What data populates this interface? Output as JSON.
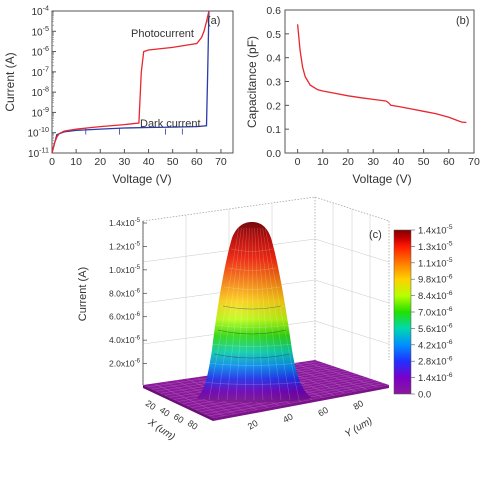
{
  "chart_data": [
    {
      "panel_label": "(a)",
      "type": "line",
      "xlabel": "Voltage (V)",
      "ylabel": "Current (A)",
      "xlim": [
        0,
        75
      ],
      "ylim": [
        1e-11,
        0.0001
      ],
      "yscale": "log",
      "xticks": [
        0,
        10,
        20,
        30,
        40,
        50,
        60,
        70
      ],
      "ytick_labels": [
        "10-4",
        "10-5",
        "10-6",
        "10-7",
        "10-8",
        "10-9",
        "10-10",
        "10-11"
      ],
      "series": [
        {
          "name": "Photocurrent",
          "color": "#e8262f",
          "x": [
            0,
            1,
            2,
            3,
            5,
            10,
            20,
            30,
            36,
            37,
            38,
            40,
            50,
            60,
            62,
            63,
            64,
            65
          ],
          "y": [
            1e-11,
            3e-11,
            6e-11,
            9e-11,
            1.2e-10,
            1.5e-10,
            2e-10,
            2.5e-10,
            3e-10,
            1e-07,
            1e-06,
            1.2e-06,
            1.6e-06,
            2.5e-06,
            5e-06,
            1e-05,
            3e-05,
            0.0001
          ]
        },
        {
          "name": "Dark current",
          "color": "#2b3aa8",
          "x": [
            0,
            2,
            5,
            10,
            20,
            30,
            40,
            50,
            60,
            64,
            64.5,
            65
          ],
          "y": [
            1e-11,
            8e-11,
            1.1e-10,
            1.3e-10,
            1.5e-10,
            1.7e-10,
            1.8e-10,
            1.9e-10,
            2e-10,
            2.2e-10,
            1e-07,
            0.0001
          ]
        }
      ]
    },
    {
      "panel_label": "(b)",
      "type": "line",
      "xlabel": "Voltage (V)",
      "ylabel": "Capacitance (pF)",
      "xlim": [
        -5,
        70
      ],
      "ylim": [
        0,
        0.6
      ],
      "xticks": [
        0,
        10,
        20,
        30,
        40,
        50,
        60,
        70
      ],
      "yticks": [
        0.0,
        0.1,
        0.2,
        0.3,
        0.4,
        0.5,
        0.6
      ],
      "ytick_labels": [
        "0.0",
        "0.1",
        "0.2",
        "0.3",
        "0.4",
        "0.5",
        "0.6"
      ],
      "series": [
        {
          "color": "#e8262f",
          "x": [
            0,
            1,
            2,
            3,
            5,
            8,
            10,
            15,
            20,
            25,
            30,
            35,
            36,
            37,
            40,
            45,
            50,
            55,
            60,
            63,
            65,
            67
          ],
          "y": [
            0.54,
            0.43,
            0.36,
            0.32,
            0.285,
            0.265,
            0.26,
            0.25,
            0.24,
            0.232,
            0.225,
            0.218,
            0.212,
            0.2,
            0.195,
            0.185,
            0.175,
            0.165,
            0.15,
            0.138,
            0.13,
            0.128
          ]
        }
      ]
    },
    {
      "panel_label": "(c)",
      "type": "surface3d",
      "xlabel": "X (um)",
      "ylabel": "Y (um)",
      "zlabel": "Current (A)",
      "x_ticks": [
        "20",
        "40",
        "60",
        "80"
      ],
      "y_ticks": [
        "20",
        "40",
        "60",
        "80"
      ],
      "z_ticks": [
        "2.0x10-6",
        "4.0x10-6",
        "6.0x10-6",
        "8.0x10-6",
        "1.0x10-5",
        "1.2x10-5",
        "1.4x10-5"
      ],
      "peak_value": 1.4e-05,
      "colorbar": {
        "labels": [
          "1.4x10-5",
          "1.3x10-5",
          "1.1x10-5",
          "9.8x10-6",
          "8.4x10-6",
          "7.0x10-6",
          "5.6x10-6",
          "4.2x10-6",
          "2.8x10-6",
          "1.4x10-6",
          "0.0"
        ],
        "colors": [
          "#7f0000",
          "#c40000",
          "#ff1a00",
          "#ff7a00",
          "#ffd000",
          "#b8ff00",
          "#22e000",
          "#00d8b0",
          "#0090ff",
          "#2030ff",
          "#7a00c8",
          "#8a1a9a"
        ]
      }
    }
  ],
  "texts": {
    "a_series1": "Photocurrent",
    "a_series2": "Dark current"
  }
}
